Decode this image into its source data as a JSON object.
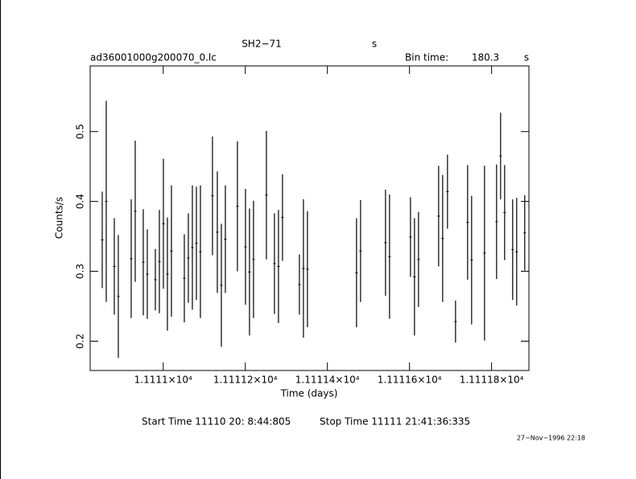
{
  "chart_data": {
    "type": "errorbar",
    "title": "SH2−71",
    "title_unit": "s",
    "subtitle": "ad36001000g200070_0.lc",
    "bin_time_label": "Bin time:",
    "bin_time": 180.3,
    "bin_time_unit": "s",
    "xlabel": "Time (days)",
    "ylabel": "Counts/s",
    "start_time": "Start Time 11110 20: 8:44:805",
    "stop_time": "Stop Time 11111 21:41:36:335",
    "timestamp": "27−Nov−1996 22:18",
    "xlim": [
      11110.822,
      11111.891
    ],
    "ylim": [
      0.158,
      0.594
    ],
    "xticks": [
      {
        "value": 11111,
        "label": "1.1111×10⁴"
      },
      {
        "value": 11111.2,
        "label": "1.11112×10⁴"
      },
      {
        "value": 11111.4,
        "label": "1.11114×10⁴"
      },
      {
        "value": 11111.6,
        "label": "1.11116×10⁴"
      },
      {
        "value": 11111.8,
        "label": "1.11118×10⁴"
      }
    ],
    "yticks": [
      0.2,
      0.3,
      0.4,
      0.5
    ],
    "color": "#000000",
    "series": [
      {
        "name": "SH2−71",
        "x": [
          11110.8514,
          11110.8612,
          11110.8808,
          11110.8906,
          11110.922,
          11110.9318,
          11110.9514,
          11110.9612,
          11110.9808,
          11110.9906,
          11111.0004,
          11111.0102,
          11111.02,
          11111.0514,
          11111.0612,
          11111.071,
          11111.0808,
          11111.0906,
          11111.12,
          11111.1318,
          11111.1416,
          11111.1514,
          11111.1808,
          11111.2004,
          11111.2102,
          11111.22,
          11111.2514,
          11111.271,
          11111.2808,
          11111.2906,
          11111.3318,
          11111.3416,
          11111.3514,
          11111.471,
          11111.4808,
          11111.5416,
          11111.5514,
          11111.6024,
          11111.6122,
          11111.622,
          11111.671,
          11111.6808,
          11111.6926,
          11111.7122,
          11111.7416,
          11111.7514,
          11111.7828,
          11111.8122,
          11111.822,
          11111.8318,
          11111.8514,
          11111.8612,
          11111.8808
        ],
        "values": [
          0.345,
          0.4,
          0.307,
          0.264,
          0.318,
          0.386,
          0.313,
          0.296,
          0.288,
          0.314,
          0.368,
          0.296,
          0.329,
          0.29,
          0.319,
          0.334,
          0.34,
          0.328,
          0.408,
          0.356,
          0.28,
          0.346,
          0.393,
          0.335,
          0.299,
          0.317,
          0.409,
          0.311,
          0.307,
          0.377,
          0.281,
          0.304,
          0.303,
          0.298,
          0.329,
          0.341,
          0.321,
          0.349,
          0.292,
          0.317,
          0.379,
          0.347,
          0.414,
          0.228,
          0.37,
          0.316,
          0.326,
          0.371,
          0.465,
          0.384,
          0.331,
          0.328,
          0.355
        ],
        "errors": [
          0.069,
          0.144,
          0.069,
          0.088,
          0.085,
          0.101,
          0.076,
          0.064,
          0.044,
          0.074,
          0.093,
          0.081,
          0.094,
          0.063,
          0.064,
          0.089,
          0.081,
          0.095,
          0.085,
          0.087,
          0.088,
          0.077,
          0.093,
          0.083,
          0.091,
          0.084,
          0.092,
          0.072,
          0.081,
          0.062,
          0.043,
          0.099,
          0.083,
          0.078,
          0.073,
          0.076,
          0.089,
          0.057,
          0.084,
          0.068,
          0.072,
          0.091,
          0.053,
          0.03,
          0.082,
          0.092,
          0.125,
          0.082,
          0.062,
          0.068,
          0.072,
          0.077,
          0.054
        ]
      }
    ]
  }
}
